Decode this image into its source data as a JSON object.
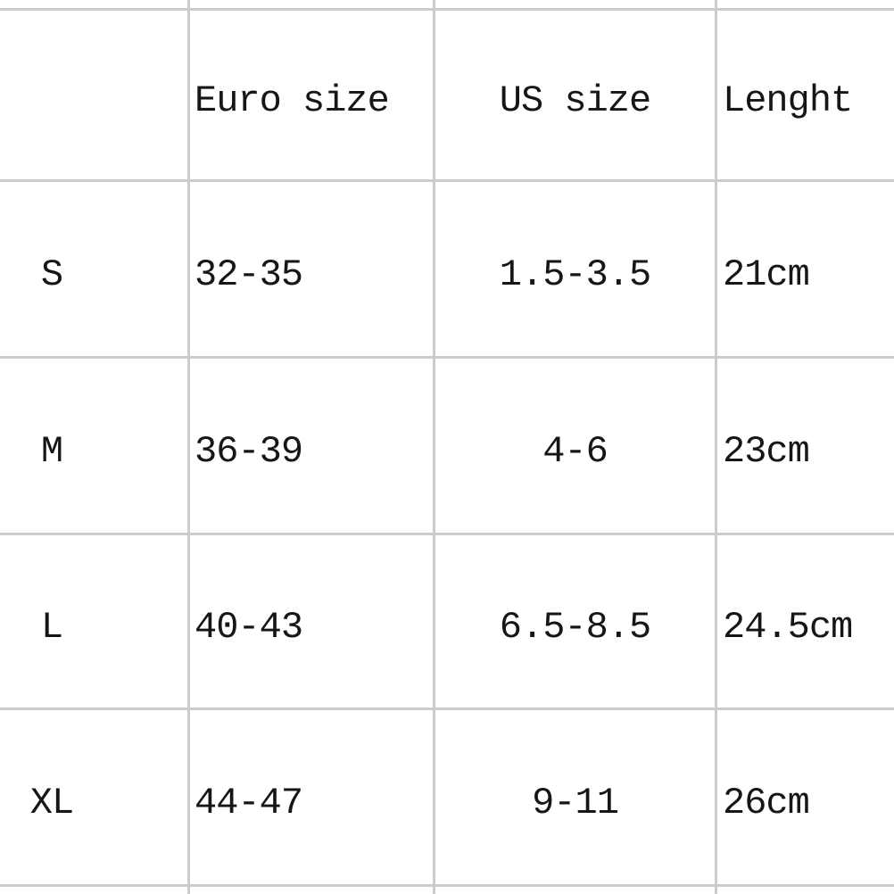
{
  "chart_data": {
    "type": "table",
    "columns": [
      "",
      "Euro size",
      "US size",
      "Lenght"
    ],
    "rows": [
      [
        "S",
        "32-35",
        "1.5-3.5",
        "21cm"
      ],
      [
        "M",
        "36-39",
        "4-6",
        "23cm"
      ],
      [
        "L",
        "40-43",
        "6.5-8.5",
        "24.5cm"
      ],
      [
        "XL",
        "44-47",
        "9-11",
        "26cm"
      ]
    ],
    "layout": {
      "grid": "on",
      "header_row": true,
      "column_alignment": [
        "center",
        "left",
        "center",
        "left"
      ]
    }
  },
  "colors": {
    "background": "#ffffff",
    "grid_line": "#cccccc",
    "text": "#161616"
  }
}
